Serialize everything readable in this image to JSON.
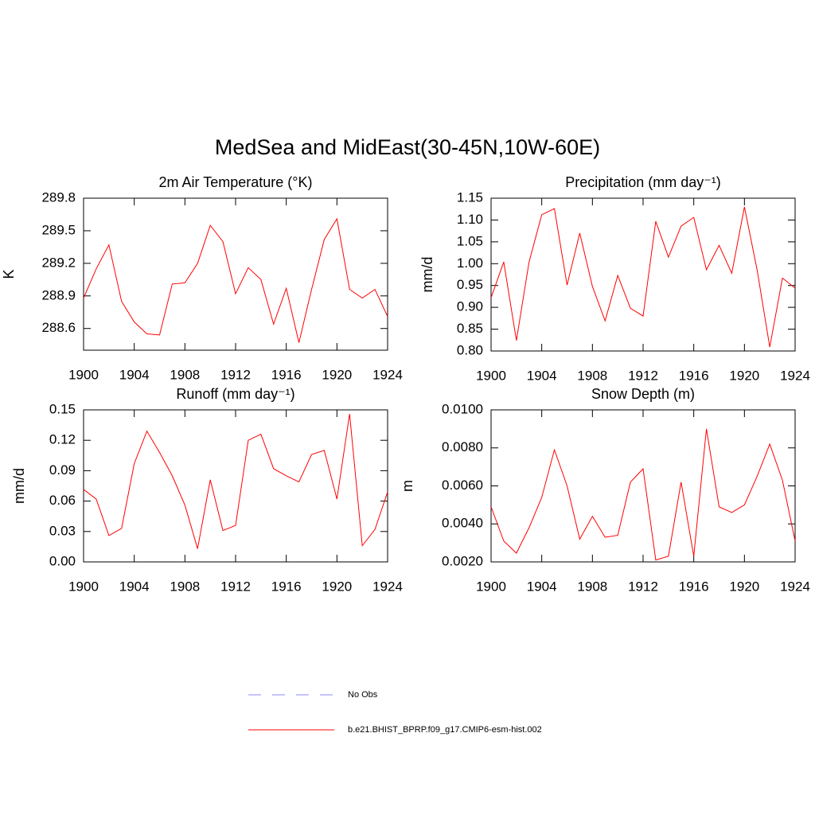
{
  "title": "MedSea and MidEast(30-45N,10W-60E)",
  "legend": [
    {
      "name": "No Obs",
      "color": "#a0a0ff",
      "dashed": true
    }
  ],
  "chart_data": [
    {
      "type": "line",
      "title": "2m Air Temperature (°K)",
      "y_label": "K",
      "x": [
        1900,
        1901,
        1902,
        1903,
        1904,
        1905,
        1906,
        1907,
        1908,
        1909,
        1910,
        1911,
        1912,
        1913,
        1914,
        1915,
        1916,
        1917,
        1918,
        1919,
        1920,
        1921,
        1922,
        1923,
        1924
      ],
      "xlim": [
        1900,
        1924
      ],
      "xticks": [
        1900,
        1904,
        1908,
        1912,
        1916,
        1920,
        1924
      ],
      "ylim": [
        288.4,
        289.8
      ],
      "yticks": [
        288.6,
        288.9,
        289.2,
        289.5,
        289.8
      ],
      "series": [
        {
          "name": "b.e21.BHIST_BPRP.f09_g17.CMIP6-esm-hist.002",
          "color": "#ff0000",
          "values": [
            288.88,
            289.15,
            289.37,
            288.85,
            288.66,
            288.55,
            288.54,
            289.01,
            289.02,
            289.2,
            289.55,
            289.4,
            288.92,
            289.16,
            289.05,
            288.64,
            288.97,
            288.47,
            288.96,
            289.42,
            289.61,
            288.96,
            288.88,
            288.96,
            288.71
          ]
        }
      ]
    },
    {
      "type": "line",
      "title": "Precipitation (mm day⁻¹)",
      "y_label": "mm/d",
      "x": [
        1900,
        1901,
        1902,
        1903,
        1904,
        1905,
        1906,
        1907,
        1908,
        1909,
        1910,
        1911,
        1912,
        1913,
        1914,
        1915,
        1916,
        1917,
        1918,
        1919,
        1920,
        1921,
        1922,
        1923,
        1924
      ],
      "xlim": [
        1900,
        1924
      ],
      "xticks": [
        1900,
        1904,
        1908,
        1912,
        1916,
        1920,
        1924
      ],
      "ylim": [
        0.8,
        1.15
      ],
      "yticks": [
        {
          "value": 0.8,
          "label": "0.80"
        },
        {
          "value": 0.85,
          "label": "0.85"
        },
        {
          "value": 0.9,
          "label": "0.90"
        },
        {
          "value": 0.95,
          "label": "0.95"
        },
        {
          "value": 1.0,
          "label": "1.00"
        },
        {
          "value": 1.05,
          "label": "1.05"
        },
        {
          "value": 1.1,
          "label": "1.10"
        },
        {
          "value": 1.15,
          "label": "1.15"
        }
      ],
      "series": [
        {
          "name": "b.e21.BHIST_BPRP.f09_g17.CMIP6-esm-hist.002",
          "color": "#ff0000",
          "values": [
            0.922,
            1.004,
            0.824,
            1.004,
            1.112,
            1.126,
            0.951,
            1.07,
            0.948,
            0.869,
            0.973,
            0.898,
            0.88,
            1.097,
            1.015,
            1.086,
            1.106,
            0.986,
            1.042,
            0.978,
            1.13,
            0.986,
            0.809,
            0.967,
            0.944
          ]
        }
      ]
    },
    {
      "type": "line",
      "title": "Runoff (mm day⁻¹)",
      "y_label": "mm/d",
      "x": [
        1900,
        1901,
        1902,
        1903,
        1904,
        1905,
        1906,
        1907,
        1908,
        1909,
        1910,
        1911,
        1912,
        1913,
        1914,
        1915,
        1916,
        1917,
        1918,
        1919,
        1920,
        1921,
        1922,
        1923,
        1924
      ],
      "xlim": [
        1900,
        1924
      ],
      "xticks": [
        1900,
        1904,
        1908,
        1912,
        1916,
        1920,
        1924
      ],
      "ylim": [
        0,
        0.15
      ],
      "yticks": [
        {
          "value": 0,
          "label": "0.00"
        },
        {
          "value": 0.03,
          "label": "0.03"
        },
        {
          "value": 0.06,
          "label": "0.06"
        },
        {
          "value": 0.09,
          "label": "0.09"
        },
        {
          "value": 0.12,
          "label": "0.12"
        },
        {
          "value": 0.15,
          "label": "0.15"
        }
      ],
      "series": [
        {
          "name": "b.e21.BHIST_BPRP.f09_g17.CMIP6-esm-hist.002",
          "color": "#ff0000",
          "values": [
            0.0715,
            0.062,
            0.026,
            0.033,
            0.097,
            0.129,
            0.108,
            0.085,
            0.056,
            0.013,
            0.081,
            0.031,
            0.036,
            0.12,
            0.126,
            0.092,
            0.085,
            0.079,
            0.106,
            0.11,
            0.062,
            0.146,
            0.016,
            0.032,
            0.069
          ]
        }
      ]
    },
    {
      "type": "line",
      "title": "Snow Depth (m)",
      "y_label": "m",
      "x": [
        1900,
        1901,
        1902,
        1903,
        1904,
        1905,
        1906,
        1907,
        1908,
        1909,
        1910,
        1911,
        1912,
        1913,
        1914,
        1915,
        1916,
        1917,
        1918,
        1919,
        1920,
        1921,
        1922,
        1923,
        1924
      ],
      "xlim": [
        1900,
        1924
      ],
      "xticks": [
        1900,
        1904,
        1908,
        1912,
        1916,
        1920,
        1924
      ],
      "ylim": [
        0.002,
        0.01
      ],
      "yticks": [
        {
          "value": 0.002,
          "label": "0.0020"
        },
        {
          "value": 0.004,
          "label": "0.0040"
        },
        {
          "value": 0.006,
          "label": "0.0060"
        },
        {
          "value": 0.008,
          "label": "0.0080"
        },
        {
          "value": 0.01,
          "label": "0.0100"
        }
      ],
      "series": [
        {
          "name": "b.e21.BHIST_BPRP.f09_g17.CMIP6-esm-hist.002",
          "color": "#ff0000",
          "values": [
            0.0049,
            0.0031,
            0.00246,
            0.0038,
            0.0054,
            0.0079,
            0.006,
            0.0032,
            0.0044,
            0.0033,
            0.0034,
            0.0062,
            0.0069,
            0.0021,
            0.0023,
            0.0062,
            0.0023,
            0.009,
            0.0049,
            0.0046,
            0.005,
            0.0065,
            0.0082,
            0.0063,
            0.0031
          ]
        }
      ]
    }
  ]
}
